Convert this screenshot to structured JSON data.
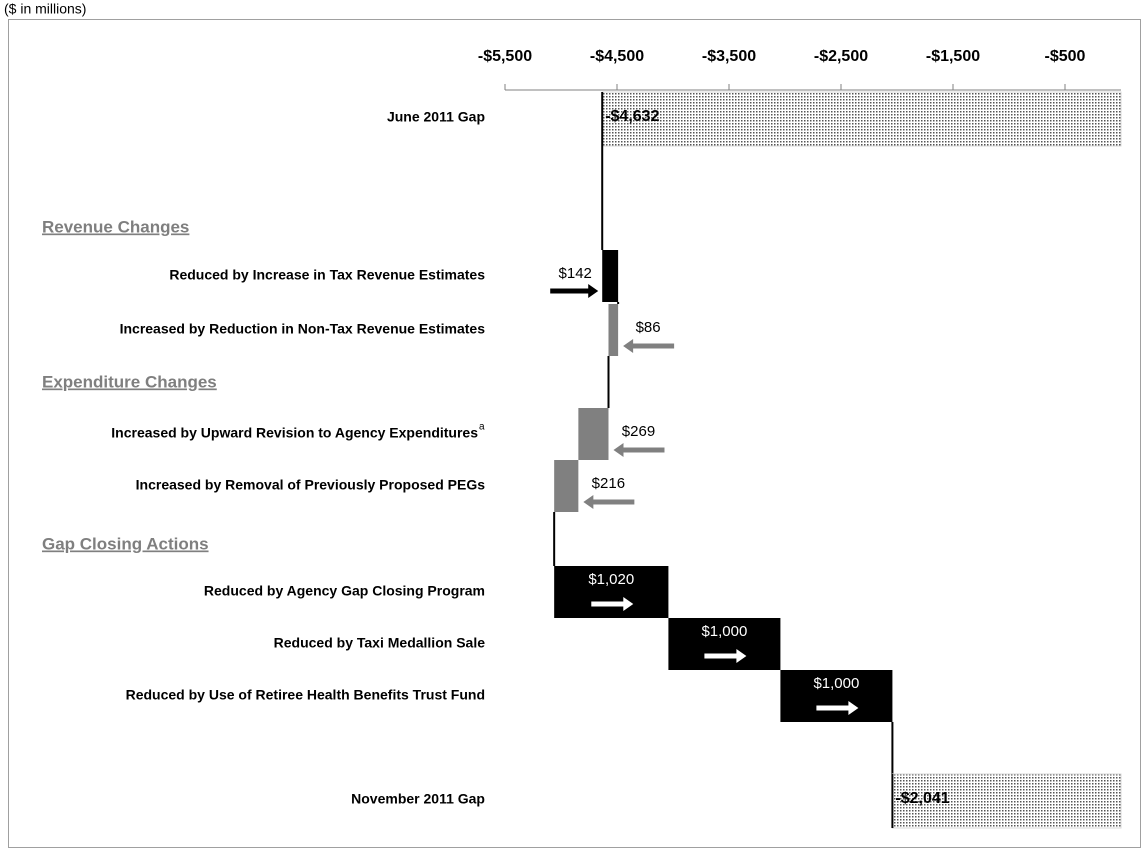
{
  "chart_data": {
    "type": "waterfall",
    "subtitle": "($ in millions)",
    "categories": [
      "June 2011 Gap",
      "Reduced by Increase in Tax Revenue Estimates",
      "Increased by Reduction in Non-Tax Revenue Estimates",
      "Increased by Upward Revision to Agency Expenditures",
      "Increased by Removal of Previously Proposed PEGs",
      "Reduced by Agency Gap Closing Program",
      "Reduced by Taxi Medallion Sale",
      "Reduced by Use of Retiree Health Benefits Trust Fund",
      "November 2011 Gap"
    ],
    "category_notes": [
      null,
      null,
      null,
      "a",
      null,
      null,
      null,
      null,
      null
    ],
    "section_titles": [
      "Revenue Changes",
      "Expenditure Changes",
      "Gap Closing Actions"
    ],
    "values": [
      -4632,
      142,
      86,
      269,
      216,
      1020,
      1000,
      1000,
      -2041
    ],
    "value_labels": [
      "-$4,632",
      "$142",
      "$86",
      "$269",
      "$216",
      "$1,020",
      "$1,000",
      "$1,000",
      "-$2,041"
    ],
    "effects": [
      "start",
      "reduce",
      "increase",
      "increase",
      "increase",
      "reduce",
      "reduce",
      "reduce",
      "end"
    ],
    "colors": {
      "reduce": "#000000",
      "increase": "#808080",
      "total": "#d9d9d9"
    },
    "xlim": [
      -5500,
      0
    ],
    "xticks": [
      {
        "value": -5500,
        "label": "-$5,500"
      },
      {
        "value": -4500,
        "label": "-$4,500"
      },
      {
        "value": -3500,
        "label": "-$3,500"
      },
      {
        "value": -2500,
        "label": "-$2,500"
      },
      {
        "value": -1500,
        "label": "-$1,500"
      },
      {
        "value": -500,
        "label": "-$500"
      }
    ]
  }
}
